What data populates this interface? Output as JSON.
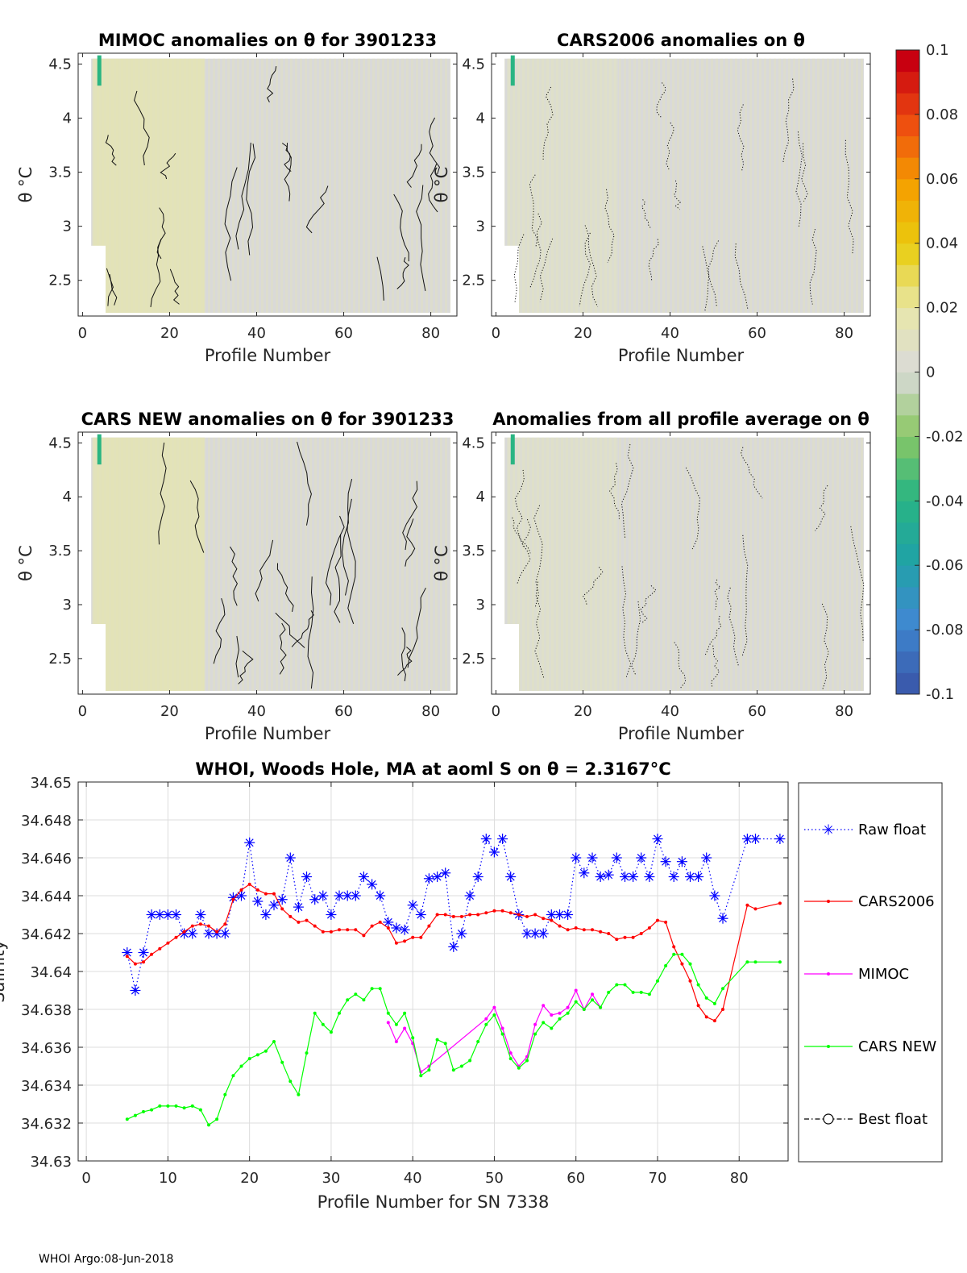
{
  "chart_data": [
    {
      "type": "heatmap",
      "title": "MIMOC anomalies on θ  for 3901233",
      "xlabel": "Profile Number",
      "ylabel": "θ °C",
      "xlim": [
        -1,
        86
      ],
      "ylim": [
        2.17,
        4.6
      ],
      "xticks": [
        "0",
        "20",
        "40",
        "60",
        "80"
      ],
      "yticks": [
        "2.5",
        "3",
        "3.5",
        "4",
        "4.5"
      ],
      "contour_style": "solid"
    },
    {
      "type": "heatmap",
      "title": "CARS2006 anomalies on θ",
      "xlabel": "Profile Number",
      "ylabel": "θ °C",
      "xlim": [
        -1,
        86
      ],
      "ylim": [
        2.17,
        4.6
      ],
      "xticks": [
        "0",
        "20",
        "40",
        "60",
        "80"
      ],
      "yticks": [
        "2.5",
        "3",
        "3.5",
        "4",
        "4.5"
      ],
      "contour_style": "dotted"
    },
    {
      "type": "heatmap",
      "title": "CARS NEW anomalies on θ for 3901233",
      "xlabel": "Profile Number",
      "ylabel": "θ °C",
      "xlim": [
        -1,
        86
      ],
      "ylim": [
        2.17,
        4.6
      ],
      "xticks": [
        "0",
        "20",
        "40",
        "60",
        "80"
      ],
      "yticks": [
        "2.5",
        "3",
        "3.5",
        "4",
        "4.5"
      ],
      "contour_style": "solid"
    },
    {
      "type": "heatmap",
      "title": "Anomalies from all profile average on θ",
      "xlabel": "Profile Number",
      "ylabel": "θ °C",
      "xlim": [
        -1,
        86
      ],
      "ylim": [
        2.17,
        4.6
      ],
      "xticks": [
        "0",
        "20",
        "40",
        "60",
        "80"
      ],
      "yticks": [
        "2.5",
        "3",
        "3.5",
        "4",
        "4.5"
      ],
      "contour_style": "dotted"
    },
    {
      "type": "colorbar",
      "ticks": [
        "0.1",
        "0.08",
        "0.06",
        "0.04",
        "0.02",
        "0",
        "-0.02",
        "-0.04",
        "-0.06",
        "-0.08",
        "-0.1"
      ],
      "range": [
        -0.1,
        0.1
      ],
      "colormap": [
        "#3a5bad",
        "#3f89d1",
        "#1fa3a5",
        "#2ab582",
        "#8cc865",
        "#dadada",
        "#e8e7aa",
        "#e9cd10",
        "#f5a000",
        "#ee4d10",
        "#c80010"
      ]
    },
    {
      "type": "line",
      "title": "WHOI, Woods Hole, MA at aoml S on θ = 2.3167°C",
      "xlabel": "Profile Number for SN 7338",
      "ylabel": "Salinity",
      "xlim": [
        -1,
        86
      ],
      "ylim": [
        34.63,
        34.65
      ],
      "xticks": [
        "0",
        "10",
        "20",
        "30",
        "40",
        "50",
        "60",
        "70",
        "80"
      ],
      "yticks": [
        "34.63",
        "34.632",
        "34.634",
        "34.636",
        "34.638",
        "34.64",
        "34.642",
        "34.644",
        "34.646",
        "34.648",
        "34.65"
      ],
      "grid": true,
      "legend_position": "right",
      "series": [
        {
          "name": "Raw float",
          "color": "#0000ff",
          "x": [
            5,
            6,
            7,
            8,
            9,
            10,
            11,
            12,
            13,
            14,
            15,
            16,
            17,
            18,
            19,
            20,
            21,
            22,
            23,
            24,
            25,
            26,
            27,
            28,
            29,
            30,
            31,
            32,
            33,
            34,
            35,
            36,
            37,
            38,
            39,
            40,
            41,
            42,
            43,
            44,
            45,
            46,
            47,
            48,
            49,
            50,
            51,
            52,
            53,
            54,
            55,
            56,
            57,
            58,
            59,
            60,
            61,
            62,
            63,
            64,
            65,
            66,
            67,
            68,
            69,
            70,
            71,
            72,
            73,
            74,
            75,
            76,
            77,
            78,
            81,
            82,
            85
          ],
          "values": [
            34.641,
            34.639,
            34.641,
            34.643,
            34.643,
            34.643,
            34.643,
            34.642,
            34.642,
            34.643,
            34.642,
            34.642,
            34.642,
            34.6439,
            34.644,
            34.6468,
            34.6437,
            34.643,
            34.6435,
            34.6438,
            34.646,
            34.6434,
            34.645,
            34.6438,
            34.644,
            34.643,
            34.644,
            34.644,
            34.644,
            34.645,
            34.6446,
            34.644,
            34.6426,
            34.6423,
            34.6422,
            34.6435,
            34.643,
            34.6449,
            34.645,
            34.6452,
            34.6413,
            34.642,
            34.644,
            34.645,
            34.647,
            34.6463,
            34.647,
            34.645,
            34.643,
            34.642,
            34.642,
            34.642,
            34.643,
            34.643,
            34.643,
            34.646,
            34.6452,
            34.646,
            34.645,
            34.6451,
            34.646,
            34.645,
            34.645,
            34.646,
            34.645,
            34.647,
            34.6458,
            34.645,
            34.6458,
            34.645,
            34.645,
            34.646,
            34.644,
            34.6428,
            34.647,
            34.647,
            34.647
          ]
        },
        {
          "name": "CARS2006",
          "color": "#ff0000",
          "x": [
            5,
            6,
            7,
            8,
            9,
            10,
            11,
            12,
            13,
            14,
            15,
            16,
            17,
            18,
            19,
            20,
            21,
            22,
            23,
            24,
            25,
            26,
            27,
            28,
            29,
            30,
            31,
            32,
            33,
            34,
            35,
            36,
            37,
            38,
            39,
            40,
            41,
            42,
            43,
            44,
            45,
            46,
            47,
            48,
            49,
            50,
            51,
            52,
            53,
            54,
            55,
            56,
            57,
            58,
            59,
            60,
            61,
            62,
            63,
            64,
            65,
            66,
            67,
            68,
            69,
            70,
            71,
            72,
            73,
            74,
            75,
            76,
            77,
            78,
            81,
            82,
            85
          ],
          "values": [
            34.6408,
            34.6404,
            34.6405,
            34.6409,
            34.6412,
            34.6415,
            34.6418,
            34.6421,
            34.6424,
            34.6425,
            34.6424,
            34.6421,
            34.6425,
            34.6438,
            34.6443,
            34.6446,
            34.6443,
            34.6441,
            34.6441,
            34.6433,
            34.6429,
            34.6426,
            34.6427,
            34.6424,
            34.6421,
            34.6421,
            34.6422,
            34.6422,
            34.6422,
            34.6419,
            34.6424,
            34.6426,
            34.6423,
            34.6415,
            34.6416,
            34.6418,
            34.6418,
            34.6424,
            34.643,
            34.643,
            34.6429,
            34.6429,
            34.643,
            34.643,
            34.6431,
            34.6432,
            34.6432,
            34.6431,
            34.643,
            34.6429,
            34.643,
            34.6428,
            34.6427,
            34.6424,
            34.6422,
            34.6423,
            34.6422,
            34.6422,
            34.6421,
            34.642,
            34.6417,
            34.6418,
            34.6418,
            34.642,
            34.6423,
            34.6427,
            34.6426,
            34.6413,
            34.6404,
            34.6395,
            34.6382,
            34.6376,
            34.6374,
            34.638,
            34.6435,
            34.6433,
            34.6436
          ]
        },
        {
          "name": "MIMOC",
          "color": "#ff00ff",
          "x": [
            37,
            38,
            39,
            40,
            41,
            42,
            49,
            50,
            51,
            52,
            53,
            54,
            55,
            56,
            57,
            58,
            59,
            60,
            61,
            62,
            63
          ],
          "values": [
            34.6373,
            34.6363,
            34.637,
            34.6362,
            34.6347,
            34.635,
            34.6375,
            34.6381,
            34.637,
            34.6357,
            34.635,
            34.6355,
            34.6372,
            34.6382,
            34.6377,
            34.6378,
            34.6381,
            34.639,
            34.638,
            34.6388,
            34.6381
          ]
        },
        {
          "name": "CARS NEW",
          "color": "#00ff00",
          "x": [
            5,
            6,
            7,
            8,
            9,
            10,
            11,
            12,
            13,
            14,
            15,
            16,
            17,
            18,
            19,
            20,
            21,
            22,
            23,
            24,
            25,
            26,
            27,
            28,
            29,
            30,
            31,
            32,
            33,
            34,
            35,
            36,
            37,
            38,
            39,
            40,
            41,
            42,
            43,
            44,
            45,
            46,
            47,
            48,
            49,
            50,
            51,
            52,
            53,
            54,
            55,
            56,
            57,
            58,
            59,
            60,
            61,
            62,
            63,
            64,
            65,
            66,
            67,
            68,
            69,
            70,
            71,
            72,
            73,
            74,
            75,
            76,
            77,
            78,
            81,
            82,
            85
          ],
          "values": [
            34.6322,
            34.6324,
            34.6326,
            34.6327,
            34.6329,
            34.6329,
            34.6329,
            34.6328,
            34.6329,
            34.6327,
            34.6319,
            34.6322,
            34.6335,
            34.6345,
            34.635,
            34.6354,
            34.6356,
            34.6358,
            34.6363,
            34.6352,
            34.6342,
            34.6335,
            34.6357,
            34.6378,
            34.6372,
            34.6368,
            34.6378,
            34.6385,
            34.6388,
            34.6385,
            34.6391,
            34.6391,
            34.6378,
            34.6372,
            34.6378,
            34.6365,
            34.6345,
            34.6348,
            34.6364,
            34.6362,
            34.6348,
            34.635,
            34.6353,
            34.6363,
            34.6372,
            34.6377,
            34.6367,
            34.6354,
            34.6349,
            34.6353,
            34.6367,
            34.6373,
            34.637,
            34.6375,
            34.6378,
            34.6384,
            34.638,
            34.6385,
            34.6381,
            34.6389,
            34.6393,
            34.6393,
            34.6389,
            34.6389,
            34.6388,
            34.6395,
            34.6403,
            34.6409,
            34.6409,
            34.6404,
            34.6393,
            34.6386,
            34.6383,
            34.6391,
            34.6405,
            34.6405,
            34.6405
          ]
        },
        {
          "name": "Best float",
          "color": "#000000",
          "x": [],
          "values": []
        }
      ]
    }
  ],
  "footer": "WHOI Argo:08-Jun-2018"
}
